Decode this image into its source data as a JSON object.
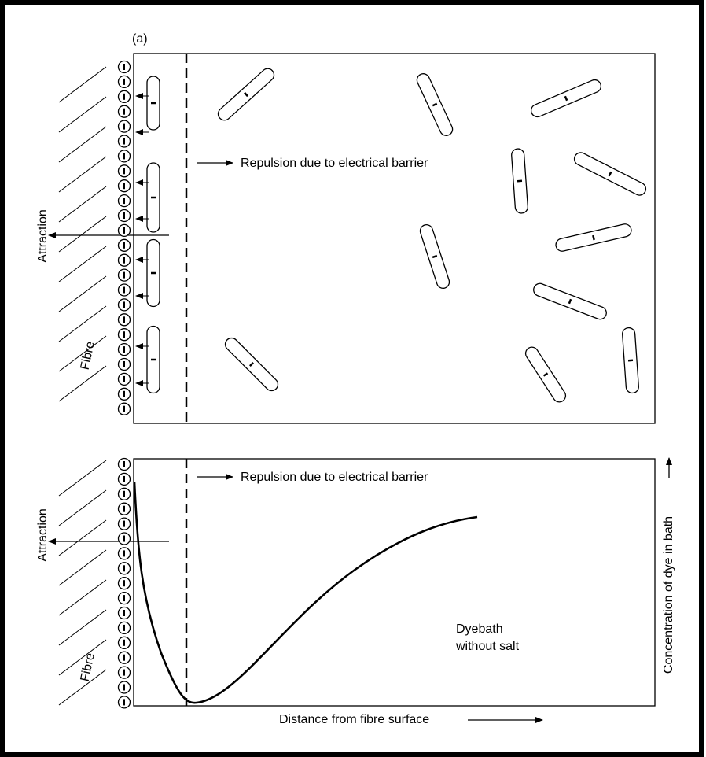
{
  "panel_a": {
    "label": "(a)",
    "barrier_label": "Repulsion due to electrical barrier",
    "attraction_label": "Attraction",
    "fibre_label": "Fibre"
  },
  "panel_b": {
    "barrier_label": "Repulsion due to electrical barrier",
    "attraction_label": "Attraction",
    "fibre_label": "Fibre",
    "dyebath_label": [
      "Dyebath",
      "without salt"
    ],
    "x_axis_label": "Distance from fibre surface",
    "y_axis_label": "Concentration of dye in bath"
  }
}
